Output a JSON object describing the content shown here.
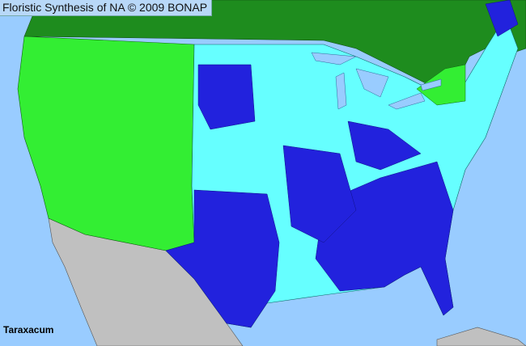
{
  "title": "Floristic Synthesis of NA © 2009 BONAP",
  "taxon": "Taraxacum",
  "colors": {
    "ocean": "#99ccff",
    "canada": "#1e8c1e",
    "species_present_native": "#33ee33",
    "species_present_county": "#1e8c1e",
    "genus_present_state": "#66ffff",
    "genus_present_county": "#2222dd",
    "mexico": "#c0c0c0",
    "lakes": "#99ccff"
  }
}
